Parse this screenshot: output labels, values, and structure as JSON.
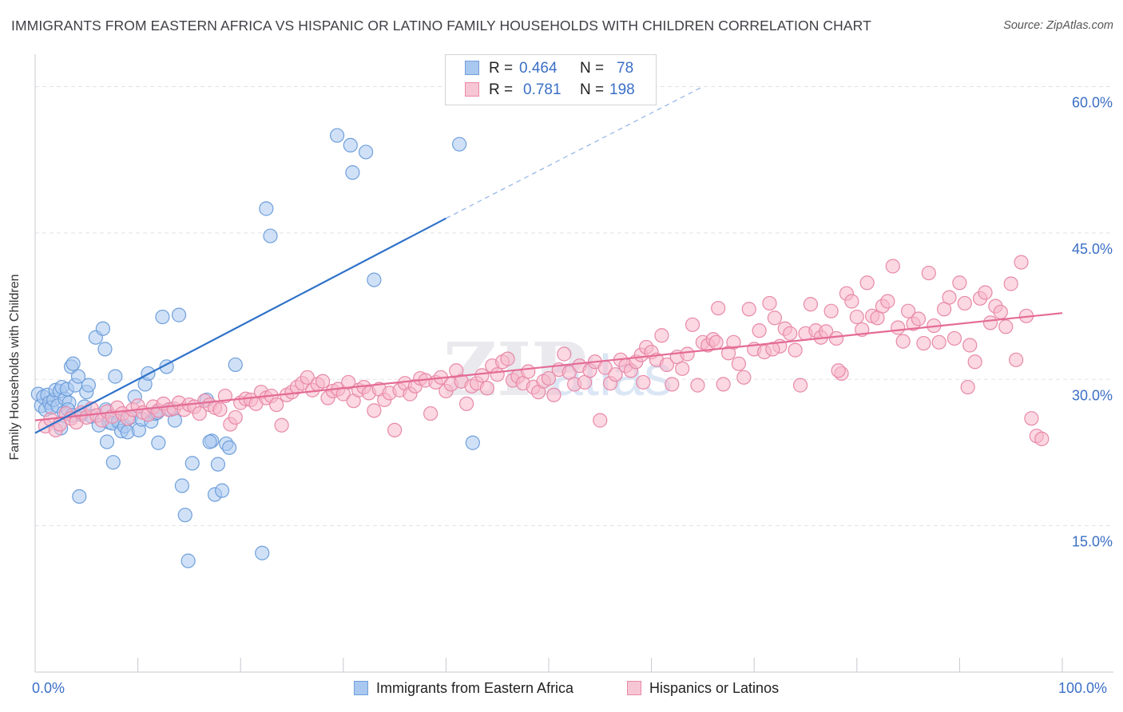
{
  "header": {
    "title": "IMMIGRANTS FROM EASTERN AFRICA VS HISPANIC OR LATINO FAMILY HOUSEHOLDS WITH CHILDREN CORRELATION CHART",
    "source": "Source: ZipAtlas.com"
  },
  "legend": {
    "blue": {
      "r_label": "R =",
      "r_value": "0.464",
      "n_label": "N =",
      "n_value": "78"
    },
    "pink": {
      "r_label": "R =",
      "r_value": "0.781",
      "n_label": "N =",
      "n_value": "198"
    }
  },
  "watermark": {
    "zip": "ZIP",
    "atlas": "atlas"
  },
  "colors": {
    "blue_fill": "#a9c8f0",
    "blue_stroke": "#6f9fdb",
    "blue_line": "#2f72c9",
    "pink_fill": "#f7b8cb",
    "pink_stroke": "#e889a8",
    "pink_line": "#e46b95",
    "axis_label": "#3b6fc6",
    "grid": "#e3e3e8"
  },
  "chart_data": {
    "type": "scatter",
    "title": "IMMIGRANTS FROM EASTERN AFRICA VS HISPANIC OR LATINO FAMILY HOUSEHOLDS WITH CHILDREN CORRELATION CHART",
    "xlabel": "",
    "ylabel": "Family Households with Children",
    "xlim": [
      0,
      100
    ],
    "ylim": [
      0,
      62.5
    ],
    "x_tick_labels": [
      "0.0%",
      "100.0%"
    ],
    "y_ticks": [
      15,
      30,
      45,
      60
    ],
    "y_tick_labels": [
      "15.0%",
      "30.0%",
      "45.0%",
      "60.0%"
    ],
    "grid": true,
    "legend_position": "top-center",
    "series": [
      {
        "name": "Immigrants from Eastern Africa",
        "color": "#a9c8f0",
        "r": 0.464,
        "n": 78,
        "trend": {
          "x": [
            0,
            40
          ],
          "y": [
            24.5,
            46.5
          ],
          "dashed_to": [
            65,
            60
          ]
        },
        "points": [
          [
            0.3,
            28.5
          ],
          [
            0.6,
            27.3
          ],
          [
            0.8,
            28.2
          ],
          [
            1.0,
            26.9
          ],
          [
            1.2,
            28.4
          ],
          [
            1.4,
            27.6
          ],
          [
            1.6,
            27.1
          ],
          [
            1.8,
            27.9
          ],
          [
            2.0,
            28.9
          ],
          [
            2.2,
            27.3
          ],
          [
            2.4,
            28.8
          ],
          [
            2.6,
            29.2
          ],
          [
            2.9,
            28.0
          ],
          [
            3.1,
            29.0
          ],
          [
            3.3,
            27.6
          ],
          [
            3.5,
            31.3
          ],
          [
            3.7,
            31.6
          ],
          [
            2.5,
            25.0
          ],
          [
            2.8,
            26.6
          ],
          [
            3.2,
            26.9
          ],
          [
            3.6,
            26.3
          ],
          [
            3.9,
            29.4
          ],
          [
            4.2,
            30.3
          ],
          [
            4.5,
            26.4
          ],
          [
            4.8,
            27.2
          ],
          [
            5.0,
            28.7
          ],
          [
            5.2,
            29.4
          ],
          [
            5.5,
            26.2
          ],
          [
            5.9,
            34.3
          ],
          [
            6.2,
            25.3
          ],
          [
            6.6,
            35.2
          ],
          [
            6.9,
            26.9
          ],
          [
            7.2,
            25.6
          ],
          [
            7.5,
            25.5
          ],
          [
            7.8,
            30.3
          ],
          [
            8.1,
            25.7
          ],
          [
            8.4,
            24.7
          ],
          [
            8.7,
            25.2
          ],
          [
            9.0,
            24.6
          ],
          [
            9.3,
            26.1
          ],
          [
            6.8,
            33.1
          ],
          [
            9.7,
            28.2
          ],
          [
            10.1,
            24.8
          ],
          [
            10.4,
            25.9
          ],
          [
            10.7,
            29.5
          ],
          [
            11.0,
            30.6
          ],
          [
            11.3,
            25.7
          ],
          [
            11.7,
            26.5
          ],
          [
            12.0,
            23.5
          ],
          [
            12.4,
            36.4
          ],
          [
            12.8,
            31.3
          ],
          [
            13.2,
            26.9
          ],
          [
            13.6,
            25.8
          ],
          [
            14.0,
            36.6
          ],
          [
            14.3,
            19.1
          ],
          [
            14.6,
            16.1
          ],
          [
            14.9,
            11.4
          ],
          [
            15.3,
            21.4
          ],
          [
            16.7,
            27.9
          ],
          [
            17.2,
            23.7
          ],
          [
            17.5,
            18.2
          ],
          [
            18.2,
            18.6
          ],
          [
            18.6,
            23.4
          ],
          [
            18.9,
            23.0
          ],
          [
            19.5,
            31.5
          ],
          [
            17.0,
            23.6
          ],
          [
            7.6,
            21.5
          ],
          [
            7.0,
            23.6
          ],
          [
            11.9,
            26.6
          ],
          [
            4.3,
            18.0
          ],
          [
            17.8,
            21.3
          ],
          [
            22.5,
            47.5
          ],
          [
            22.9,
            44.7
          ],
          [
            22.1,
            12.2
          ],
          [
            29.4,
            55.0
          ],
          [
            30.7,
            54.0
          ],
          [
            30.9,
            51.2
          ],
          [
            32.2,
            53.3
          ],
          [
            33.0,
            40.2
          ],
          [
            41.3,
            54.1
          ],
          [
            42.6,
            23.5
          ]
        ]
      },
      {
        "name": "Hispanics or Latinos",
        "color": "#f7b8cb",
        "r": 0.781,
        "n": 198,
        "trend": {
          "x": [
            0,
            100
          ],
          "y": [
            25.8,
            36.8
          ]
        },
        "points": [
          [
            1.0,
            25.2
          ],
          [
            1.5,
            25.9
          ],
          [
            2.0,
            24.8
          ],
          [
            2.4,
            25.4
          ],
          [
            3.0,
            26.5
          ],
          [
            3.5,
            26.0
          ],
          [
            4.0,
            25.6
          ],
          [
            4.5,
            26.6
          ],
          [
            5.0,
            26.1
          ],
          [
            5.5,
            27.0
          ],
          [
            6.0,
            26.3
          ],
          [
            6.5,
            25.8
          ],
          [
            7.0,
            26.7
          ],
          [
            7.5,
            26.2
          ],
          [
            8.0,
            27.1
          ],
          [
            8.5,
            26.5
          ],
          [
            9.0,
            26.0
          ],
          [
            9.5,
            26.9
          ],
          [
            10.0,
            27.3
          ],
          [
            10.5,
            26.6
          ],
          [
            11.0,
            26.4
          ],
          [
            11.5,
            27.2
          ],
          [
            12.0,
            26.8
          ],
          [
            12.5,
            27.5
          ],
          [
            13.0,
            26.9
          ],
          [
            13.5,
            27.0
          ],
          [
            14.0,
            27.6
          ],
          [
            14.5,
            26.9
          ],
          [
            15.0,
            27.4
          ],
          [
            15.5,
            27.2
          ],
          [
            16.0,
            26.5
          ],
          [
            16.5,
            27.8
          ],
          [
            17.0,
            27.4
          ],
          [
            17.5,
            27.1
          ],
          [
            18.0,
            26.9
          ],
          [
            18.5,
            28.3
          ],
          [
            19.0,
            25.4
          ],
          [
            19.5,
            26.1
          ],
          [
            20.0,
            27.6
          ],
          [
            20.5,
            28.0
          ],
          [
            21.0,
            27.9
          ],
          [
            21.5,
            27.5
          ],
          [
            22.0,
            28.7
          ],
          [
            22.5,
            28.1
          ],
          [
            23.0,
            28.3
          ],
          [
            23.5,
            27.4
          ],
          [
            24.0,
            25.3
          ],
          [
            24.5,
            28.4
          ],
          [
            25.0,
            28.7
          ],
          [
            25.5,
            29.2
          ],
          [
            26.0,
            29.6
          ],
          [
            26.5,
            30.2
          ],
          [
            27.0,
            28.9
          ],
          [
            27.5,
            29.5
          ],
          [
            28.0,
            29.8
          ],
          [
            28.5,
            28.1
          ],
          [
            29.0,
            28.8
          ],
          [
            29.5,
            29.0
          ],
          [
            30.0,
            28.5
          ],
          [
            30.5,
            29.7
          ],
          [
            31.0,
            27.8
          ],
          [
            31.5,
            28.9
          ],
          [
            32.0,
            29.2
          ],
          [
            32.5,
            28.6
          ],
          [
            33.0,
            26.8
          ],
          [
            33.5,
            29.0
          ],
          [
            34.0,
            27.9
          ],
          [
            34.5,
            28.6
          ],
          [
            35.0,
            24.8
          ],
          [
            35.5,
            28.9
          ],
          [
            36.0,
            29.6
          ],
          [
            36.5,
            28.5
          ],
          [
            37.0,
            29.3
          ],
          [
            37.5,
            30.1
          ],
          [
            38.0,
            29.9
          ],
          [
            38.5,
            26.5
          ],
          [
            39.0,
            29.7
          ],
          [
            39.5,
            30.2
          ],
          [
            40.0,
            28.8
          ],
          [
            40.5,
            29.5
          ],
          [
            41.0,
            30.9
          ],
          [
            41.5,
            29.8
          ],
          [
            42.0,
            27.5
          ],
          [
            42.5,
            29.3
          ],
          [
            43.0,
            29.6
          ],
          [
            43.5,
            30.4
          ],
          [
            44.0,
            29.1
          ],
          [
            44.5,
            31.4
          ],
          [
            45.0,
            30.5
          ],
          [
            45.5,
            31.8
          ],
          [
            46.0,
            32.1
          ],
          [
            46.5,
            29.9
          ],
          [
            47.0,
            30.3
          ],
          [
            47.5,
            29.6
          ],
          [
            48.0,
            30.8
          ],
          [
            48.5,
            29.2
          ],
          [
            49.0,
            28.7
          ],
          [
            49.5,
            29.8
          ],
          [
            50.0,
            30.1
          ],
          [
            50.5,
            28.4
          ],
          [
            51.0,
            31.0
          ],
          [
            51.5,
            32.6
          ],
          [
            52.0,
            30.7
          ],
          [
            52.5,
            29.5
          ],
          [
            53.0,
            31.4
          ],
          [
            53.5,
            29.7
          ],
          [
            54.0,
            30.9
          ],
          [
            54.5,
            31.8
          ],
          [
            55.0,
            25.8
          ],
          [
            55.5,
            31.2
          ],
          [
            56.0,
            29.6
          ],
          [
            56.5,
            30.5
          ],
          [
            57.0,
            32.0
          ],
          [
            57.5,
            31.4
          ],
          [
            58.0,
            30.9
          ],
          [
            58.5,
            31.8
          ],
          [
            59.0,
            32.5
          ],
          [
            59.5,
            33.3
          ],
          [
            60.0,
            32.8
          ],
          [
            60.5,
            32.0
          ],
          [
            61.0,
            34.5
          ],
          [
            61.5,
            31.5
          ],
          [
            62.0,
            29.5
          ],
          [
            62.5,
            32.3
          ],
          [
            63.0,
            31.1
          ],
          [
            63.5,
            32.6
          ],
          [
            64.0,
            35.6
          ],
          [
            64.5,
            29.4
          ],
          [
            65.0,
            33.8
          ],
          [
            65.5,
            33.5
          ],
          [
            66.0,
            34.1
          ],
          [
            66.5,
            37.3
          ],
          [
            67.0,
            29.5
          ],
          [
            67.5,
            32.7
          ],
          [
            68.0,
            33.8
          ],
          [
            68.5,
            31.6
          ],
          [
            69.0,
            30.2
          ],
          [
            69.5,
            37.2
          ],
          [
            70.0,
            33.1
          ],
          [
            70.5,
            35.0
          ],
          [
            71.0,
            32.8
          ],
          [
            71.5,
            37.8
          ],
          [
            72.0,
            36.3
          ],
          [
            72.5,
            33.4
          ],
          [
            73.0,
            35.2
          ],
          [
            73.5,
            34.7
          ],
          [
            74.0,
            33.0
          ],
          [
            74.5,
            29.4
          ],
          [
            75.0,
            34.7
          ],
          [
            75.5,
            37.7
          ],
          [
            76.0,
            35.0
          ],
          [
            76.5,
            34.3
          ],
          [
            77.0,
            34.9
          ],
          [
            77.5,
            37.0
          ],
          [
            78.0,
            34.2
          ],
          [
            78.5,
            30.6
          ],
          [
            79.0,
            38.8
          ],
          [
            79.5,
            38.0
          ],
          [
            80.0,
            36.4
          ],
          [
            80.5,
            35.1
          ],
          [
            81.0,
            39.9
          ],
          [
            81.5,
            36.5
          ],
          [
            82.0,
            36.3
          ],
          [
            82.5,
            37.5
          ],
          [
            83.0,
            38.0
          ],
          [
            83.5,
            41.6
          ],
          [
            84.0,
            35.3
          ],
          [
            84.5,
            33.9
          ],
          [
            85.0,
            37.0
          ],
          [
            85.5,
            35.7
          ],
          [
            86.0,
            36.2
          ],
          [
            86.5,
            33.7
          ],
          [
            87.0,
            40.9
          ],
          [
            87.5,
            35.5
          ],
          [
            88.0,
            33.8
          ],
          [
            88.5,
            37.2
          ],
          [
            89.0,
            38.4
          ],
          [
            89.5,
            34.2
          ],
          [
            90.0,
            39.9
          ],
          [
            90.5,
            37.8
          ],
          [
            91.0,
            33.5
          ],
          [
            91.5,
            31.8
          ],
          [
            92.0,
            38.3
          ],
          [
            92.5,
            38.9
          ],
          [
            93.0,
            35.8
          ],
          [
            93.5,
            37.5
          ],
          [
            94.0,
            36.9
          ],
          [
            94.5,
            35.4
          ],
          [
            95.0,
            39.8
          ],
          [
            95.5,
            32.0
          ],
          [
            96.0,
            42.0
          ],
          [
            96.5,
            36.5
          ],
          [
            97.0,
            26.0
          ],
          [
            97.5,
            24.2
          ],
          [
            98.0,
            23.9
          ],
          [
            90.8,
            29.2
          ],
          [
            78.2,
            30.9
          ],
          [
            71.8,
            33.1
          ],
          [
            66.3,
            33.8
          ],
          [
            59.2,
            29.7
          ]
        ]
      }
    ]
  },
  "bottom_legend": {
    "blue_label": "Immigrants from Eastern Africa",
    "pink_label": "Hispanics or Latinos"
  }
}
